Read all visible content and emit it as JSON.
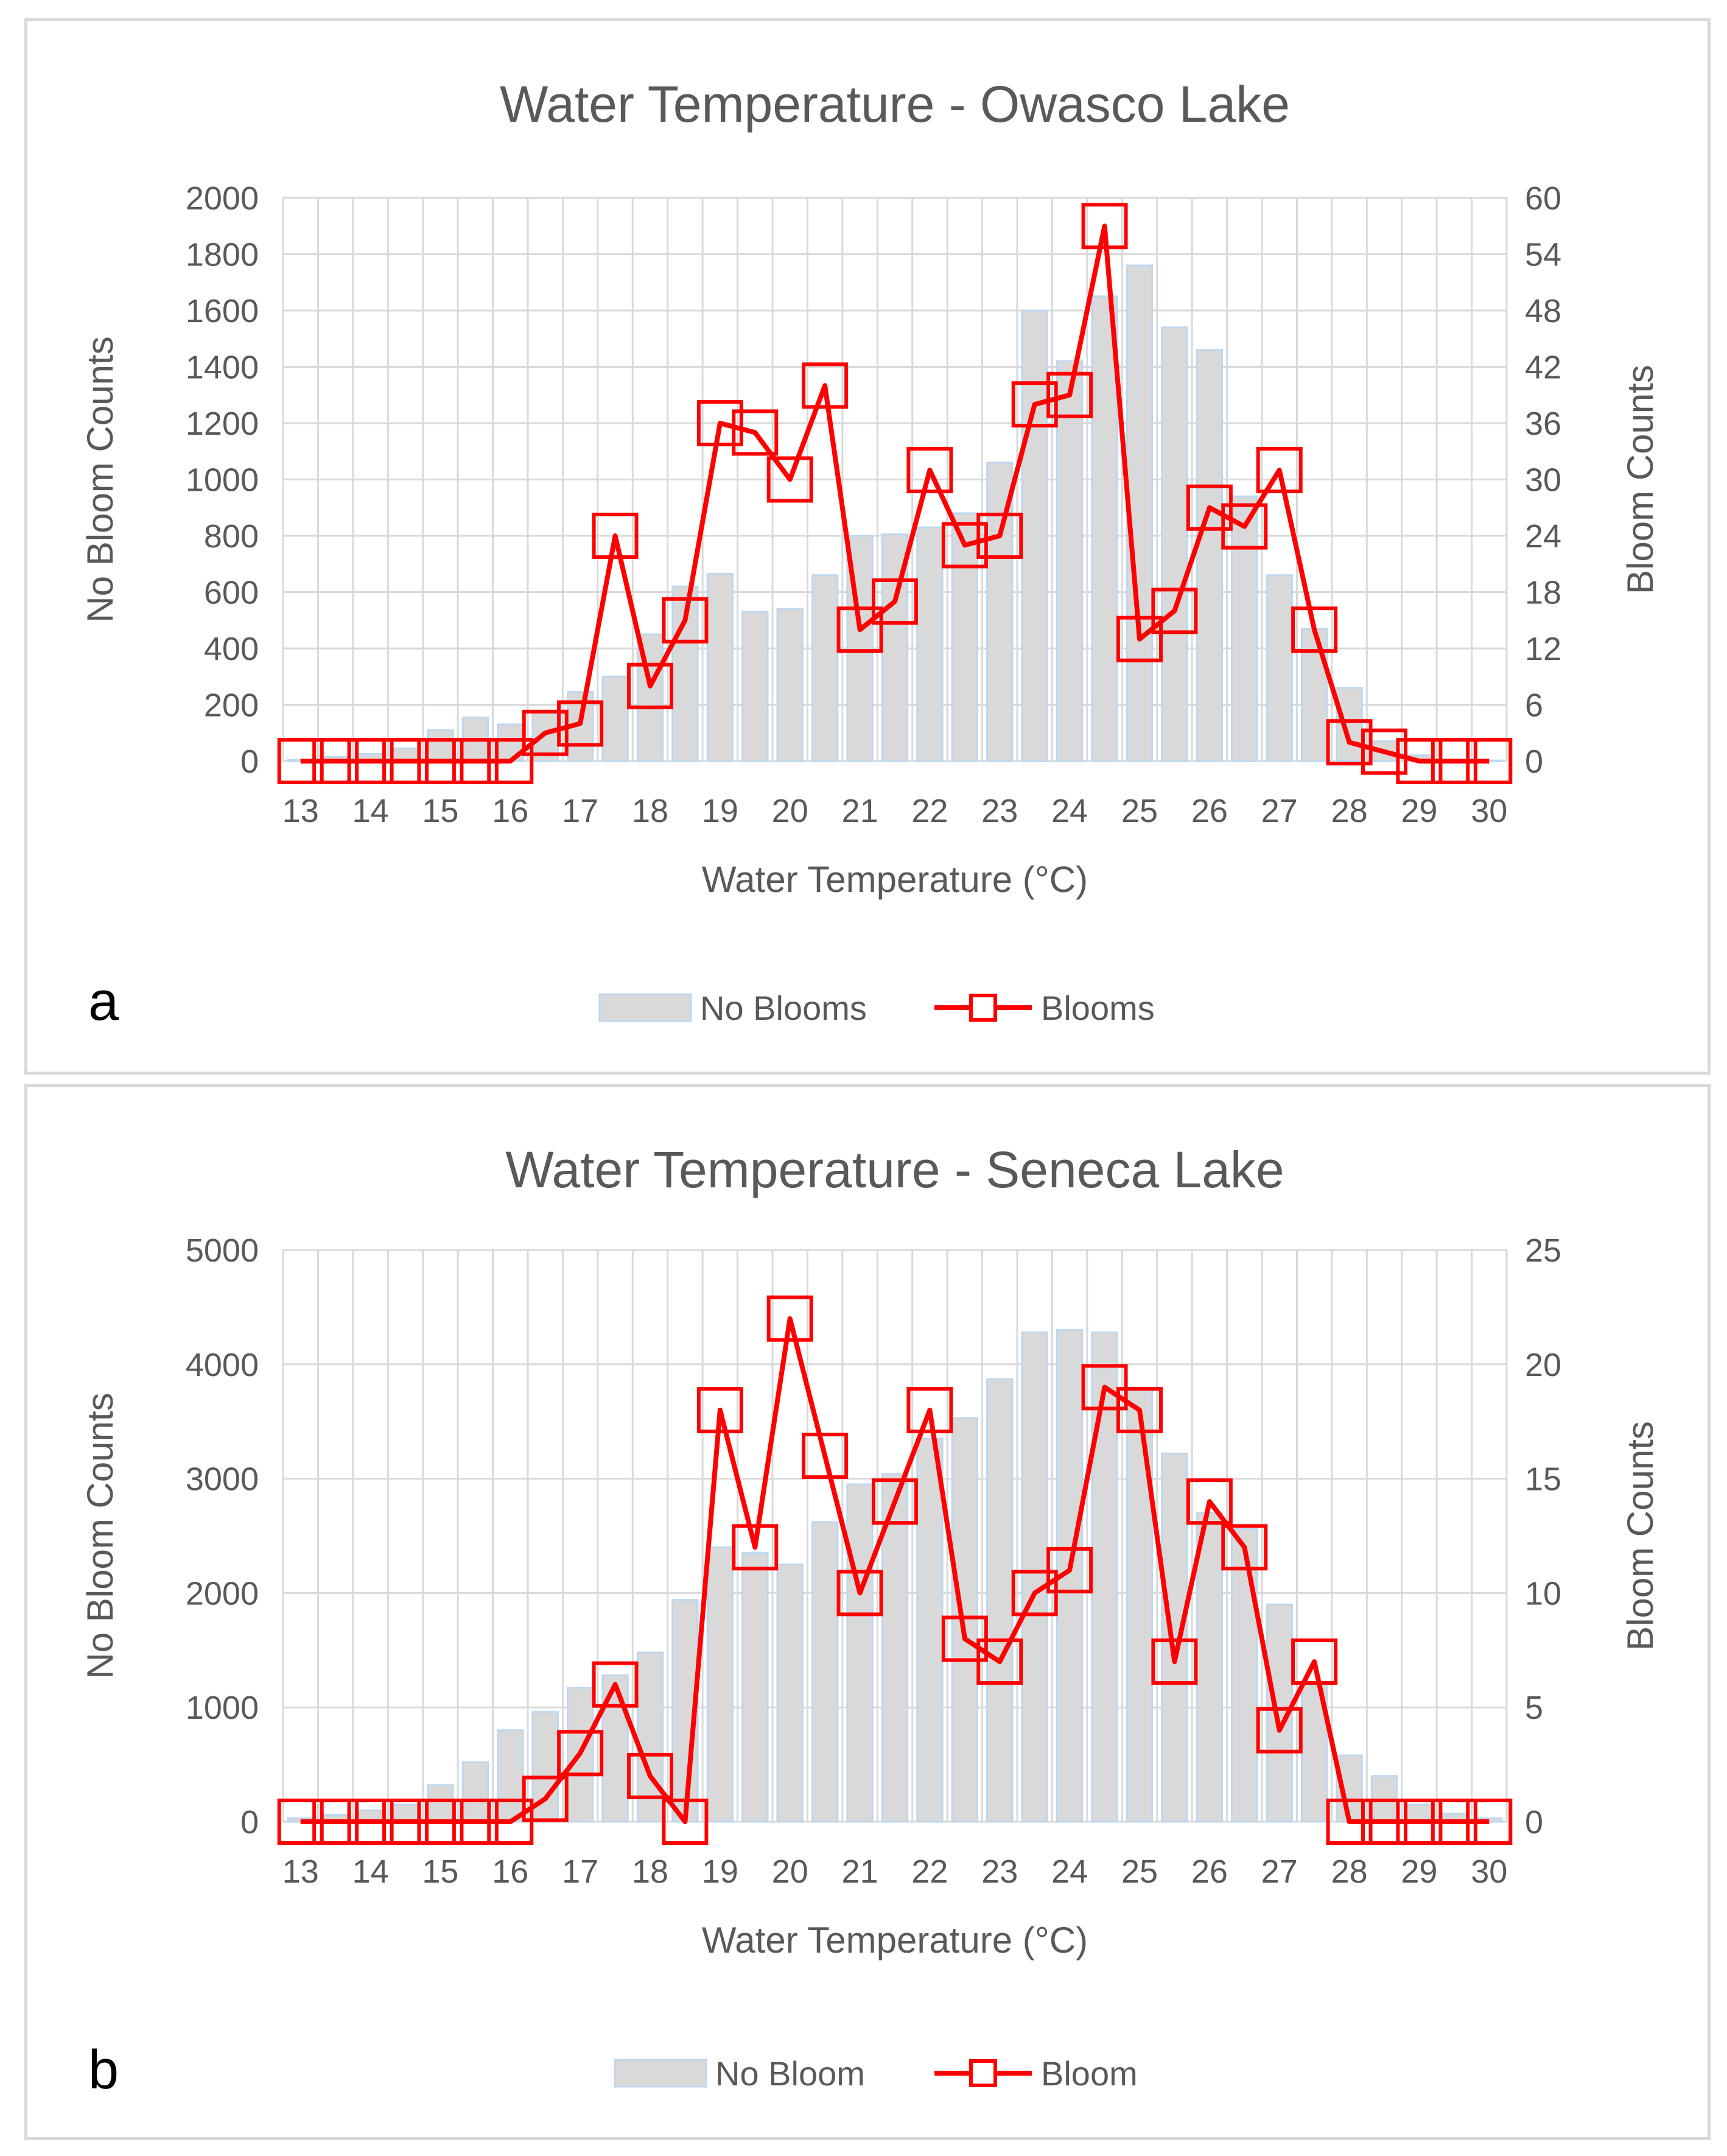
{
  "chart_data": [
    {
      "type": "bar",
      "panel_label": "a",
      "title": "Water Temperature  - Owasco Lake",
      "xlabel": "Water Temperature (°C)",
      "ylabel": "No Bloom Counts",
      "y2label": "Bloom Counts",
      "ylim": [
        0,
        2000
      ],
      "y2lim": [
        0,
        60
      ],
      "yticks": [
        "0",
        "200",
        "400",
        "600",
        "800",
        "1000",
        "1200",
        "1400",
        "1600",
        "1800",
        "2000"
      ],
      "y2ticks": [
        "0",
        "6",
        "12",
        "18",
        "24",
        "30",
        "36",
        "42",
        "48",
        "54",
        "60"
      ],
      "xticks": [
        "13",
        "14",
        "15",
        "16",
        "17",
        "18",
        "19",
        "20",
        "21",
        "22",
        "23",
        "24",
        "25",
        "26",
        "27",
        "28",
        "29",
        "30"
      ],
      "x": [
        13,
        13.5,
        14,
        14.5,
        15,
        15.5,
        16,
        16.5,
        17,
        17.5,
        18,
        18.5,
        19,
        19.5,
        20,
        20.5,
        21,
        21.5,
        22,
        22.5,
        23,
        23.5,
        24,
        24.5,
        25,
        25.5,
        26,
        26.5,
        27,
        27.5,
        28,
        28.5,
        29,
        29.5,
        30
      ],
      "grid": true,
      "legend_position": "bottom",
      "series": [
        {
          "name": "No Blooms",
          "kind": "bar",
          "axis": "left",
          "color": "#d9d9d9",
          "edge": "#bdd7ee",
          "values": [
            5,
            15,
            25,
            45,
            110,
            155,
            130,
            175,
            245,
            300,
            450,
            620,
            665,
            530,
            540,
            660,
            800,
            805,
            830,
            880,
            1060,
            1600,
            1420,
            1650,
            1760,
            1540,
            1460,
            940,
            660,
            470,
            260,
            70,
            20,
            5,
            2
          ]
        },
        {
          "name": "Blooms",
          "kind": "line",
          "axis": "right",
          "color": "#ff0000",
          "marker": "square",
          "values": [
            0,
            0,
            0,
            0,
            0,
            0,
            0,
            3,
            4,
            24,
            8,
            15,
            36,
            35,
            30,
            40,
            14,
            17,
            31,
            23,
            24,
            38,
            39,
            57,
            13,
            16,
            27,
            25,
            31,
            14,
            2,
            1,
            0,
            0,
            0
          ]
        }
      ]
    },
    {
      "type": "bar",
      "panel_label": "b",
      "title": "Water Temperature  - Seneca Lake",
      "xlabel": "Water Temperature (°C)",
      "ylabel": "No Bloom Counts",
      "y2label": "Bloom Counts",
      "ylim": [
        0,
        5000
      ],
      "y2lim": [
        0,
        25
      ],
      "yticks": [
        "0",
        "1000",
        "2000",
        "3000",
        "4000",
        "5000"
      ],
      "y2ticks": [
        "0",
        "5",
        "10",
        "15",
        "20",
        "25"
      ],
      "xticks": [
        "13",
        "14",
        "15",
        "16",
        "17",
        "18",
        "19",
        "20",
        "21",
        "22",
        "23",
        "24",
        "25",
        "26",
        "27",
        "28",
        "29",
        "30"
      ],
      "x": [
        13,
        13.5,
        14,
        14.5,
        15,
        15.5,
        16,
        16.5,
        17,
        17.5,
        18,
        18.5,
        19,
        19.5,
        20,
        20.5,
        21,
        21.5,
        22,
        22.5,
        23,
        23.5,
        24,
        24.5,
        25,
        25.5,
        26,
        26.5,
        27,
        27.5,
        28,
        28.5,
        29,
        29.5,
        30
      ],
      "grid": true,
      "legend_position": "bottom",
      "series": [
        {
          "name": "No Bloom",
          "kind": "bar",
          "axis": "left",
          "color": "#d9d9d9",
          "edge": "#bdd7ee",
          "values": [
            30,
            60,
            100,
            150,
            320,
            520,
            800,
            960,
            1170,
            1280,
            1480,
            1940,
            2400,
            2350,
            2250,
            2620,
            2950,
            3040,
            3350,
            3530,
            3870,
            4280,
            4300,
            4280,
            3780,
            3220,
            2700,
            2560,
            1900,
            1200,
            580,
            400,
            150,
            70,
            30
          ]
        },
        {
          "name": "Bloom",
          "kind": "line",
          "axis": "right",
          "color": "#ff0000",
          "marker": "square",
          "values": [
            0,
            0,
            0,
            0,
            0,
            0,
            0,
            1,
            3,
            6,
            2,
            0,
            18,
            12,
            22,
            16,
            10,
            14,
            18,
            8,
            7,
            10,
            11,
            19,
            18,
            7,
            14,
            12,
            4,
            7,
            0,
            0,
            0,
            0,
            0
          ]
        }
      ]
    }
  ]
}
